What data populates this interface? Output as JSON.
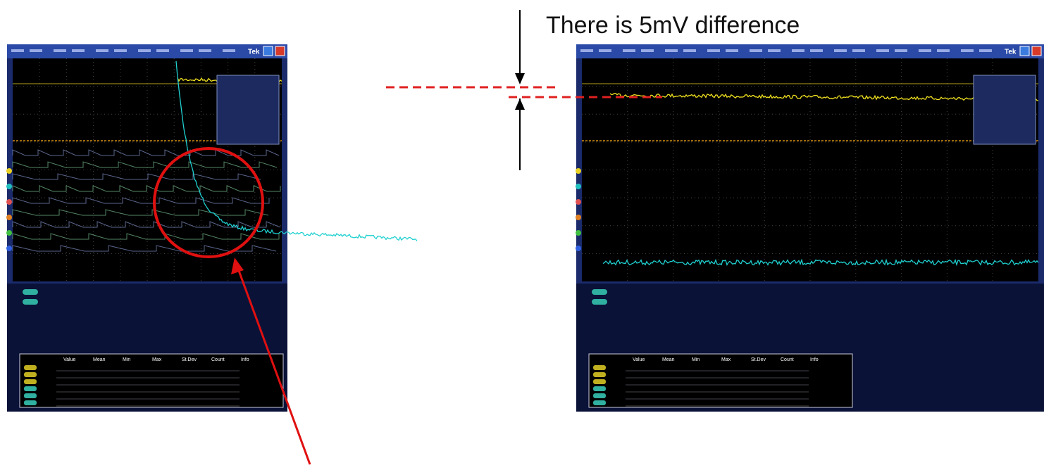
{
  "annotation": "There is 5mV difference",
  "scopes": [
    {
      "brand": "Tek",
      "table_headers": [
        "Value",
        "Mean",
        "Min",
        "Max",
        "St.Dev",
        "Count",
        "Info"
      ]
    },
    {
      "brand": "Tek",
      "table_headers": [
        "Value",
        "Mean",
        "Min",
        "Max",
        "St.Dev",
        "Count",
        "Info"
      ]
    }
  ]
}
